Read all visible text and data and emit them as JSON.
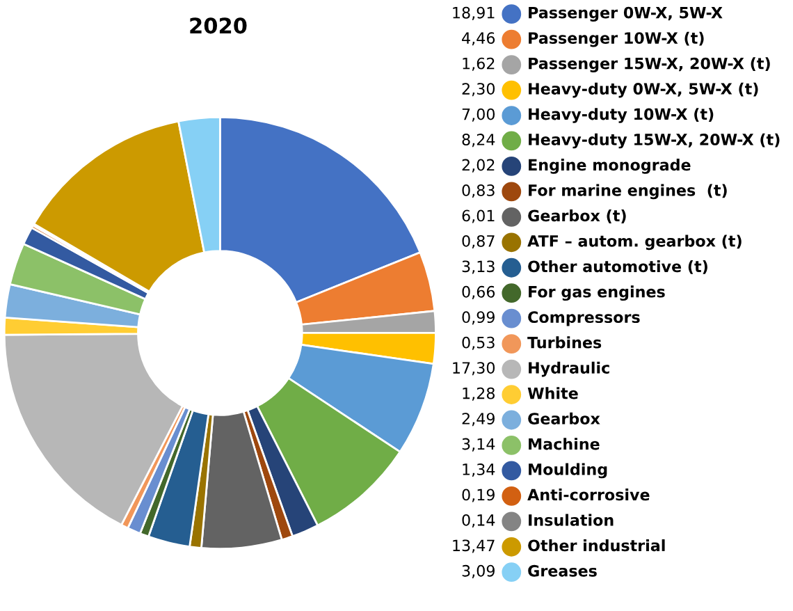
{
  "chart_data": {
    "type": "donut",
    "title": "2020",
    "legend": "right",
    "categories": [
      "Passenger 0W-X, 5W-X",
      "Passenger 10W-X (t)",
      "Passenger 15W-X, 20W-X (t)",
      "Heavy-duty 0W-X, 5W-X (t)",
      "Heavy-duty 10W-X (t)",
      "Heavy-duty 15W-X, 20W-X (t)",
      "Engine monograde",
      "For marine engines  (t)",
      "Gearbox (t)",
      "ATF – autom. gearbox (t)",
      "Other automotive (t)",
      "For gas engines",
      "Compressors",
      "Turbines",
      "Hydraulic",
      "White",
      "Gearbox",
      "Machine",
      "Moulding",
      "Anti-corrosive",
      "Insulation",
      "Other industrial",
      "Greases"
    ],
    "values": [
      18.91,
      4.46,
      1.62,
      2.3,
      7.0,
      8.24,
      2.02,
      0.83,
      6.01,
      0.87,
      3.13,
      0.66,
      0.99,
      0.53,
      17.3,
      1.28,
      2.49,
      3.14,
      1.34,
      0.19,
      0.14,
      13.47,
      3.09
    ],
    "value_labels": [
      "18,91",
      "4,46",
      "1,62",
      "2,30",
      "7,00",
      "8,24",
      "2,02",
      "0,83",
      "6,01",
      "0,87",
      "3,13",
      "0,66",
      "0,99",
      "0,53",
      "17,30",
      "1,28",
      "2,49",
      "3,14",
      "1,34",
      "0,19",
      "0,14",
      "13,47",
      "3,09"
    ],
    "colors": [
      "#4472c4",
      "#ed7d31",
      "#a5a5a5",
      "#ffc000",
      "#5b9bd5",
      "#70ad47",
      "#264478",
      "#9e480e",
      "#636363",
      "#997300",
      "#255e91",
      "#43682b",
      "#698ed0",
      "#f1975a",
      "#b7b7b7",
      "#ffcd33",
      "#7cafdd",
      "#8cc168",
      "#335aa1",
      "#d26012",
      "#848484",
      "#cc9a00",
      "#86d0f5"
    ]
  }
}
